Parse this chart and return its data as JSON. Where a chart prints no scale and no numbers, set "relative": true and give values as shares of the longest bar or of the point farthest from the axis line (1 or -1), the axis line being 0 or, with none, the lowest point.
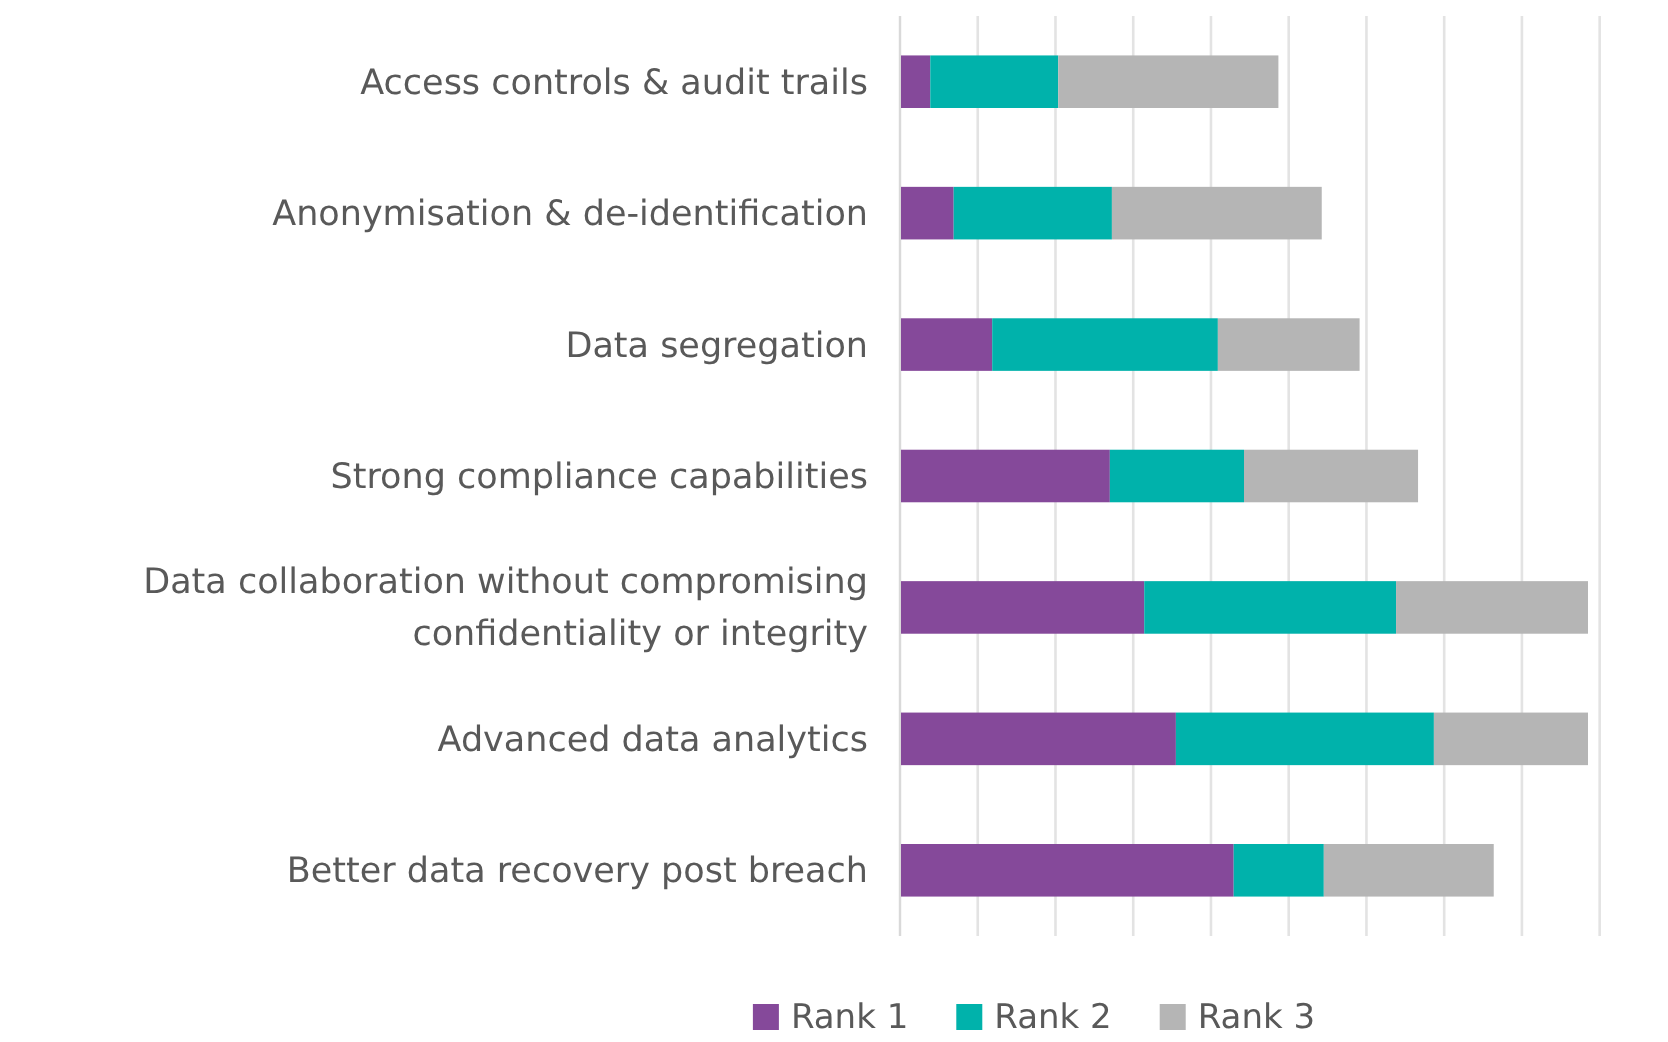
{
  "chart_data": {
    "type": "bar",
    "orientation": "horizontal",
    "stacked": true,
    "relative": true,
    "grid": "x",
    "legend": "bottom",
    "categories": [
      "Access controls & audit trails",
      "Anonymisation & de-identification",
      "Data segregation",
      "Strong compliance capabilities",
      "Data collaboration without compromising confidentiality or integrity",
      "Advanced data analytics",
      "Better data recovery post breach"
    ],
    "series": [
      {
        "name": "Rank 1",
        "color": "#85499a",
        "values": [
          0.044,
          0.078,
          0.134,
          0.305,
          0.355,
          0.401,
          0.485
        ]
      },
      {
        "name": "Rank 2",
        "color": "#00b2ab",
        "values": [
          0.186,
          0.23,
          0.328,
          0.195,
          0.366,
          0.375,
          0.131
        ]
      },
      {
        "name": "Rank 3",
        "color": "#b5b5b5",
        "values": [
          0.32,
          0.305,
          0.206,
          0.253,
          0.279,
          0.224,
          0.247
        ]
      }
    ]
  }
}
